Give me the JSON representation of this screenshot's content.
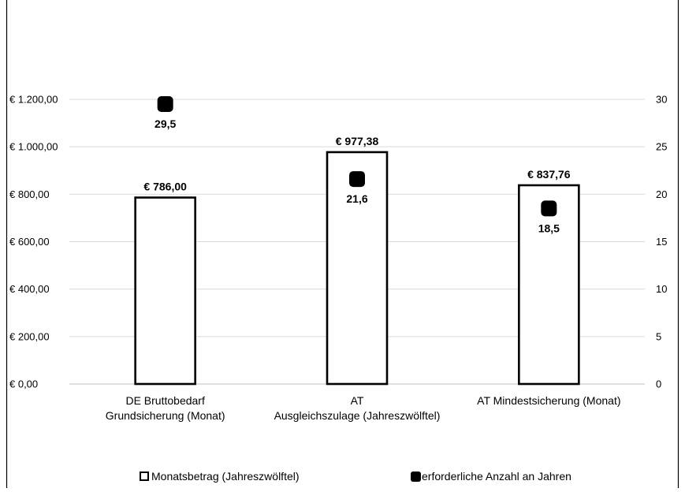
{
  "chart_data": {
    "type": "bar",
    "categories": [
      [
        "DE Bruttobedarf",
        "Grundsicherung  (Monat)"
      ],
      [
        "AT",
        "Ausgleichszulage (Jahreszwölftel)"
      ],
      [
        "AT Mindestsicherung (Monat)"
      ]
    ],
    "series": [
      {
        "name": "Monatsbetrag (Jahreszwölftel)",
        "type": "bar",
        "axis": "left",
        "values": [
          786.0,
          977.38,
          837.76
        ],
        "labels": [
          "€ 786,00",
          "€ 977,38",
          "€ 837,76"
        ]
      },
      {
        "name": "erforderliche Anzahl an Jahren",
        "type": "scatter",
        "axis": "right",
        "values": [
          29.5,
          21.6,
          18.5
        ],
        "labels": [
          "29,5",
          "21,6",
          "18,5"
        ]
      }
    ],
    "y_left": {
      "lim": [
        0,
        1200
      ],
      "ticks": [
        0,
        200,
        400,
        600,
        800,
        1000,
        1200
      ],
      "tick_labels": [
        "€ 0,00",
        "€ 200,00",
        "€ 400,00",
        "€ 600,00",
        "€ 800,00",
        "€ 1.000,00",
        "€ 1.200,00"
      ]
    },
    "y_right": {
      "lim": [
        0,
        30
      ],
      "ticks": [
        0,
        5,
        10,
        15,
        20,
        25,
        30
      ],
      "tick_labels": [
        "0",
        "5",
        "10",
        "15",
        "20",
        "25",
        "30"
      ]
    },
    "grid": true,
    "legend_position": "bottom",
    "colors": {
      "bar_fill": "#ffffff",
      "bar_stroke": "#000000",
      "marker": "#000000",
      "grid": "#d9d9d9",
      "border": "#000000"
    }
  }
}
